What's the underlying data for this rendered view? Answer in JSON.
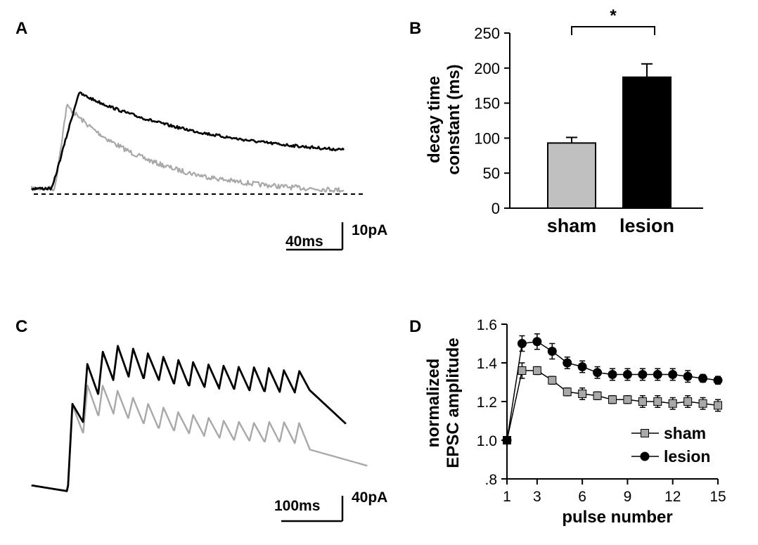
{
  "panels": {
    "A": {
      "label": "A",
      "scalebar": {
        "time_label": "40ms",
        "current_label": "10pA"
      },
      "colors": {
        "sham": "#a8a8a8",
        "lesion": "#000000"
      }
    },
    "C": {
      "label": "C",
      "scalebar": {
        "time_label": "100ms",
        "current_label": "40pA"
      },
      "colors": {
        "sham": "#a8a8a8",
        "lesion": "#000000"
      }
    }
  },
  "chart_data": [
    {
      "panel": "B",
      "type": "bar",
      "categories": [
        "sham",
        "lesion"
      ],
      "values": [
        93,
        187
      ],
      "errors": [
        8,
        19
      ],
      "colors": [
        "#c0c0c0",
        "#000000"
      ],
      "ylabel": "decay time constant (ms)",
      "ylim": [
        0,
        250
      ],
      "yticks": [
        "0",
        "50",
        "100",
        "150",
        "200",
        "250"
      ],
      "significance": "*"
    },
    {
      "panel": "D",
      "type": "line",
      "x": [
        1,
        2,
        3,
        4,
        5,
        6,
        7,
        8,
        9,
        10,
        11,
        12,
        13,
        14,
        15
      ],
      "series": [
        {
          "name": "sham",
          "marker": "square",
          "color": "#a8a8a8",
          "values": [
            1.0,
            1.36,
            1.36,
            1.31,
            1.25,
            1.24,
            1.23,
            1.21,
            1.21,
            1.2,
            1.2,
            1.19,
            1.2,
            1.19,
            1.18
          ],
          "errors": [
            0,
            0.04,
            0.02,
            0.02,
            0.02,
            0.03,
            0.02,
            0.02,
            0.02,
            0.03,
            0.03,
            0.03,
            0.03,
            0.03,
            0.03
          ]
        },
        {
          "name": "lesion",
          "marker": "circle",
          "color": "#000000",
          "values": [
            1.0,
            1.5,
            1.51,
            1.46,
            1.4,
            1.38,
            1.35,
            1.34,
            1.34,
            1.34,
            1.34,
            1.34,
            1.33,
            1.32,
            1.31
          ],
          "errors": [
            0,
            0.04,
            0.04,
            0.04,
            0.03,
            0.03,
            0.03,
            0.03,
            0.03,
            0.03,
            0.03,
            0.03,
            0.03,
            0.02,
            0.02
          ]
        }
      ],
      "xlabel": "pulse number",
      "ylabel": "normalized EPSC amplitude",
      "xlim": [
        1,
        15
      ],
      "xticks": [
        "1",
        "3",
        "6",
        "9",
        "12",
        "15"
      ],
      "ylim": [
        0.8,
        1.6
      ],
      "yticks": [
        ".8",
        "1.0",
        "1.2",
        "1.4",
        "1.6"
      ],
      "legend": "bottom-right"
    }
  ]
}
